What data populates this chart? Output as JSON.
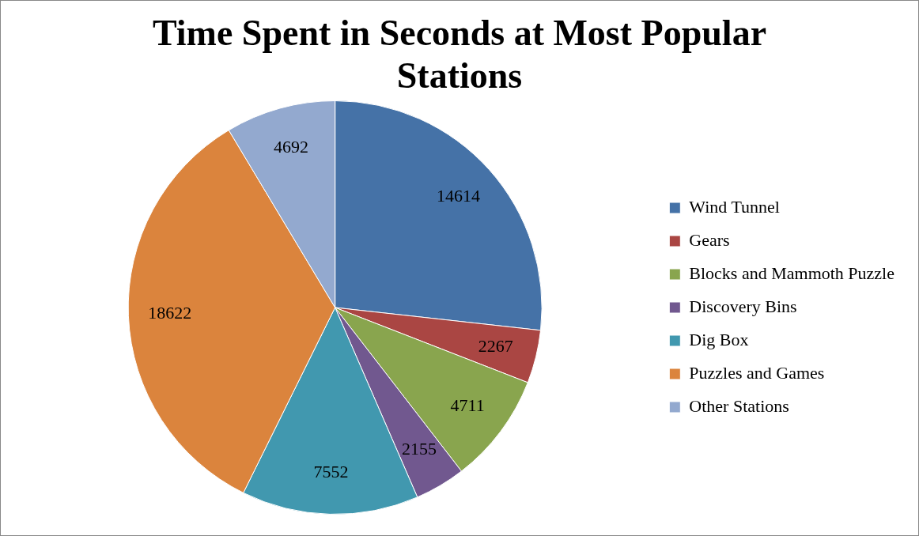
{
  "chart_data": {
    "type": "pie",
    "title": "Time Spent in Seconds at Most Popular Stations",
    "categories": [
      "Wind Tunnel",
      "Gears",
      "Blocks and Mammoth Puzzle",
      "Discovery Bins",
      "Dig Box",
      "Puzzles and Games",
      "Other Stations"
    ],
    "values": [
      14614,
      2267,
      4711,
      2155,
      7552,
      18622,
      4692
    ],
    "colors": [
      "#4572a7",
      "#aa4643",
      "#89a54e",
      "#71588f",
      "#4198af",
      "#db843d",
      "#93a9cf"
    ],
    "data_labels": true,
    "legend": "right"
  }
}
